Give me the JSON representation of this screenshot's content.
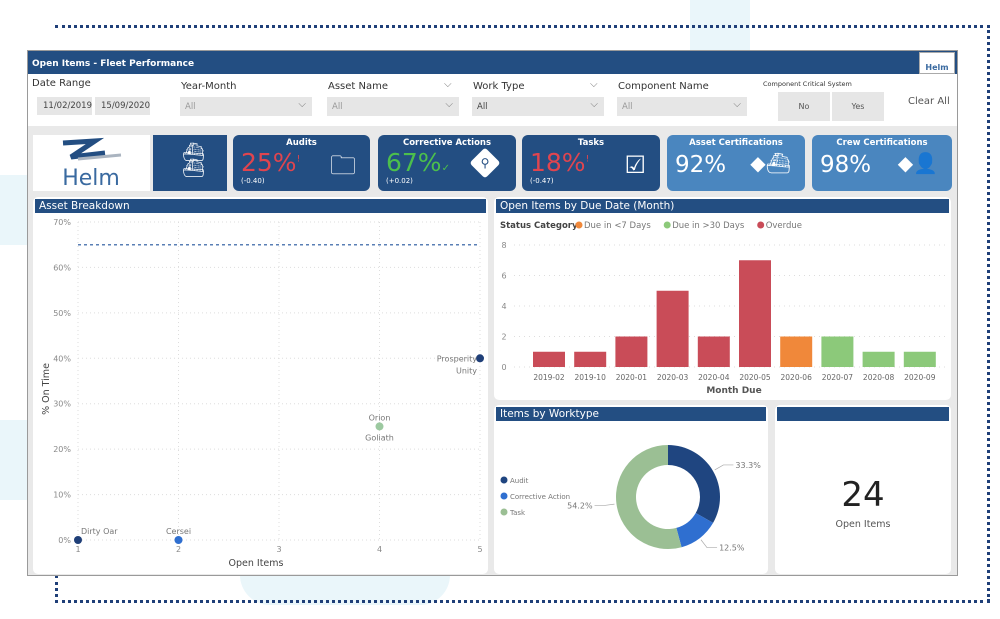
{
  "header": {
    "title": "Open Items - Fleet Performance",
    "logo": "Helm"
  },
  "filters": {
    "date_range_label": "Date Range",
    "date_from": "11/02/2019",
    "date_to": "15/09/2020",
    "year_month": {
      "label": "Year-Month",
      "value": "All"
    },
    "asset_name": {
      "label": "Asset Name",
      "value": "All"
    },
    "work_type": {
      "label": "Work Type",
      "value": "All"
    },
    "component_name": {
      "label": "Component Name",
      "value": "All"
    },
    "critical": {
      "label": "Component Critical System",
      "no": "No",
      "yes": "Yes"
    },
    "clear_all": "Clear All"
  },
  "kpis": {
    "logo": "Helm",
    "audits": {
      "title": "Audits",
      "value": "25%",
      "flag": "!",
      "delta": "(-0.40)",
      "icon": "folder-icon"
    },
    "corrective": {
      "title": "Corrective Actions",
      "value": "67%",
      "flag": "✓",
      "delta": "(+0.02)",
      "icon": "search-diamond-icon"
    },
    "tasks": {
      "title": "Tasks",
      "value": "18%",
      "flag": "!",
      "delta": "(-0.47)",
      "icon": "check-stack-icon"
    },
    "asset_cert": {
      "title": "Asset Certifications",
      "value": "92%",
      "icon": "ship-warning-icon"
    },
    "crew_cert": {
      "title": "Crew Certifications",
      "value": "98%",
      "icon": "person-warning-icon"
    },
    "colors": {
      "bad": "#e0454f",
      "good": "#4cbf4c",
      "dark": "#234e82",
      "light": "#4a86bf"
    }
  },
  "chart_data": [
    {
      "type": "scatter",
      "title": "Asset Breakdown",
      "xlabel": "Open Items",
      "ylabel": "% On Time",
      "xlim": [
        1,
        5
      ],
      "ylim": [
        0,
        70
      ],
      "xticks": [
        "1",
        "2",
        "3",
        "4",
        "5"
      ],
      "yticks": [
        "0%",
        "10%",
        "20%",
        "30%",
        "40%",
        "50%",
        "60%",
        "70%"
      ],
      "reference_line": 65,
      "grid": true,
      "points": [
        {
          "label": "Dirty Oar",
          "x": 1,
          "y": 0,
          "color": "#1f3f78"
        },
        {
          "label": "Cersei",
          "x": 2,
          "y": 0,
          "color": "#2f6fd0"
        },
        {
          "label": "Orion",
          "x": 4,
          "y": 25,
          "color": "#9cc9a0"
        },
        {
          "label": "Goliath",
          "x": 4,
          "y": 25,
          "color": "#9cc9a0"
        },
        {
          "label": "Prosperity",
          "x": 5,
          "y": 40,
          "color": "#1f3f78"
        },
        {
          "label": "Unity",
          "x": 5,
          "y": 40,
          "color": "#1f3f78"
        }
      ]
    },
    {
      "type": "bar",
      "title": "Open Items by Due Date (Month)",
      "xlabel": "Month Due",
      "ylim": [
        0,
        8
      ],
      "yticks": [
        "0",
        "2",
        "4",
        "6",
        "8"
      ],
      "legend_title": "Status Category",
      "legend": [
        {
          "name": "Due in <7 Days",
          "color": "#f0883a"
        },
        {
          "name": "Due in >30 Days",
          "color": "#8cc97a"
        },
        {
          "name": "Overdue",
          "color": "#c94c58"
        }
      ],
      "categories": [
        "2019-02",
        "2019-10",
        "2020-01",
        "2020-03",
        "2020-04",
        "2020-05",
        "2020-06",
        "2020-07",
        "2020-08",
        "2020-09"
      ],
      "values": [
        1,
        1,
        2,
        5,
        2,
        7,
        2,
        2,
        1,
        1
      ],
      "status": [
        "Overdue",
        "Overdue",
        "Overdue",
        "Overdue",
        "Overdue",
        "Overdue",
        "Due in <7 Days",
        "Due in >30 Days",
        "Due in >30 Days",
        "Due in >30 Days"
      ]
    },
    {
      "type": "pie",
      "title": "Items by Worktype",
      "donut": true,
      "slices": [
        {
          "name": "Audit",
          "value": 33.3,
          "label": "33.3%",
          "color": "#1f4580"
        },
        {
          "name": "Corrective Action",
          "value": 12.5,
          "label": "12.5%",
          "color": "#2f6fd0"
        },
        {
          "name": "Task",
          "value": 54.2,
          "label": "54.2%",
          "color": "#9bbf94"
        }
      ]
    }
  ],
  "summary": {
    "value": "24",
    "label": "Open Items"
  }
}
